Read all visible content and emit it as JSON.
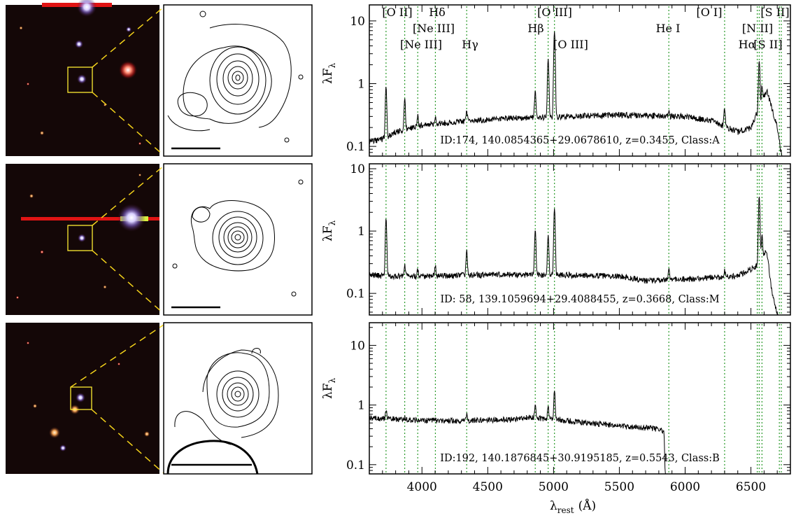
{
  "figure": {
    "x_axis_label": "λ",
    "x_axis_label_sub": "rest",
    "x_axis_unit": "(Å)",
    "y_axis_label": "λF",
    "y_axis_label_sub": "λ"
  },
  "line_labels": [
    {
      "text": "[O II]",
      "row": 0
    },
    {
      "text": "Hδ",
      "row": 0
    },
    {
      "text": "[O III]",
      "row": 0
    },
    {
      "text": "[O I]",
      "row": 0
    },
    {
      "text": "[S II]",
      "row": 0
    },
    {
      "text": "[Ne III]",
      "row": 1
    },
    {
      "text": "Hβ",
      "row": 1
    },
    {
      "text": "He I",
      "row": 1
    },
    {
      "text": "[N II]",
      "row": 1
    },
    {
      "text": "[Ne III]",
      "row": 2
    },
    {
      "text": "Hγ",
      "row": 2
    },
    {
      "text": "[O III]",
      "row": 2
    },
    {
      "text": "Hα",
      "row": 2
    },
    {
      "text": "[S II]",
      "row": 2
    }
  ],
  "chart_data": [
    {
      "type": "line",
      "title": "",
      "annotation": "ID:174, 140.0854365+29.0678610, z=0.3455, Class:A",
      "xlabel": "λrest (Å)",
      "ylabel": "λFλ",
      "xlim": [
        3600,
        6800
      ],
      "ylim": [
        0.07,
        18
      ],
      "yscale": "log",
      "x_ticks": [
        4000,
        4500,
        5000,
        5500,
        6000,
        6500
      ],
      "y_ticks": [
        {
          "v": 0.1,
          "label": "0.1"
        },
        {
          "v": 1,
          "label": "1"
        },
        {
          "v": 10,
          "label": "10"
        }
      ],
      "line_markers": [
        3727,
        3869,
        3968,
        4102,
        4340,
        4861,
        4959,
        5007,
        5876,
        6300,
        6548,
        6563,
        6584,
        6716,
        6731
      ],
      "continuum": [
        [
          3600,
          0.12
        ],
        [
          3700,
          0.13
        ],
        [
          3800,
          0.17
        ],
        [
          4000,
          0.22
        ],
        [
          4300,
          0.25
        ],
        [
          4600,
          0.28
        ],
        [
          5100,
          0.3
        ],
        [
          5500,
          0.32
        ],
        [
          6000,
          0.3
        ],
        [
          6200,
          0.26
        ],
        [
          6400,
          0.17
        ],
        [
          6500,
          0.2
        ],
        [
          6560,
          0.4
        ],
        [
          6620,
          0.8
        ],
        [
          6700,
          0.2
        ],
        [
          6730,
          0.08
        ]
      ],
      "emission": [
        [
          3727,
          0.75
        ],
        [
          3869,
          0.4
        ],
        [
          3968,
          0.1
        ],
        [
          4102,
          0.05
        ],
        [
          4340,
          0.12
        ],
        [
          4861,
          0.48
        ],
        [
          4959,
          2.2
        ],
        [
          5007,
          6.5
        ],
        [
          5876,
          0.06
        ],
        [
          6300,
          0.2
        ],
        [
          6563,
          1.9
        ],
        [
          6584,
          0.4
        ]
      ]
    },
    {
      "type": "line",
      "title": "",
      "annotation": "ID: 58, 139.1059694+29.4088455, z=0.3668, Class:M",
      "xlabel": "λrest (Å)",
      "ylabel": "λFλ",
      "xlim": [
        3600,
        6800
      ],
      "ylim": [
        0.045,
        12
      ],
      "yscale": "log",
      "x_ticks": [
        4000,
        4500,
        5000,
        5500,
        6000,
        6500
      ],
      "y_ticks": [
        {
          "v": 0.1,
          "label": "0.1"
        },
        {
          "v": 1,
          "label": "1"
        },
        {
          "v": 10,
          "label": "10"
        }
      ],
      "line_markers": [
        3727,
        3869,
        3968,
        4102,
        4340,
        4861,
        4959,
        5007,
        5876,
        6300,
        6548,
        6563,
        6584,
        6716,
        6731
      ],
      "continuum": [
        [
          3600,
          0.2
        ],
        [
          3700,
          0.19
        ],
        [
          4000,
          0.19
        ],
        [
          4500,
          0.2
        ],
        [
          5000,
          0.2
        ],
        [
          5500,
          0.19
        ],
        [
          5700,
          0.16
        ],
        [
          6000,
          0.17
        ],
        [
          6400,
          0.19
        ],
        [
          6550,
          0.28
        ],
        [
          6620,
          0.5
        ],
        [
          6660,
          0.1
        ],
        [
          6700,
          0.05
        ]
      ],
      "emission": [
        [
          3727,
          1.4
        ],
        [
          3869,
          0.1
        ],
        [
          3968,
          0.05
        ],
        [
          4102,
          0.08
        ],
        [
          4340,
          0.3
        ],
        [
          4861,
          0.85
        ],
        [
          4959,
          0.65
        ],
        [
          5007,
          2.1
        ],
        [
          5876,
          0.08
        ],
        [
          6300,
          0.05
        ],
        [
          6563,
          3.3
        ],
        [
          6584,
          0.5
        ]
      ]
    },
    {
      "type": "line",
      "title": "",
      "annotation": "ID:192, 140.1876845+30.9195185, z=0.5543, Class:B",
      "xlabel": "λrest (Å)",
      "ylabel": "λFλ",
      "xlim": [
        3600,
        6800
      ],
      "ylim": [
        0.07,
        24
      ],
      "yscale": "log",
      "x_ticks": [
        4000,
        4500,
        5000,
        5500,
        6000,
        6500
      ],
      "y_ticks": [
        {
          "v": 0.1,
          "label": "0.1"
        },
        {
          "v": 1,
          "label": "1"
        },
        {
          "v": 10,
          "label": "10"
        }
      ],
      "line_markers": [
        3727,
        3869,
        3968,
        4102,
        4340,
        4861,
        4959,
        5007,
        5876,
        6300,
        6548,
        6563,
        6584,
        6716,
        6731
      ],
      "continuum": [
        [
          3600,
          0.6
        ],
        [
          3700,
          0.6
        ],
        [
          4000,
          0.55
        ],
        [
          4300,
          0.55
        ],
        [
          4700,
          0.58
        ],
        [
          4800,
          0.62
        ],
        [
          5100,
          0.55
        ],
        [
          5400,
          0.47
        ],
        [
          5600,
          0.43
        ],
        [
          5800,
          0.4
        ],
        [
          5840,
          0.35
        ],
        [
          5850,
          0.05
        ]
      ],
      "emission": [
        [
          3727,
          0.25
        ],
        [
          3869,
          0.05
        ],
        [
          4340,
          0.15
        ],
        [
          4861,
          0.4
        ],
        [
          4959,
          0.35
        ],
        [
          5007,
          1.2
        ]
      ]
    }
  ],
  "colors": {
    "marker": "#2a9a2a",
    "zoom_box": "#ffee33",
    "zoom_lines": "#f3d21a",
    "sky": "#140707",
    "spectrum": "#000000"
  }
}
